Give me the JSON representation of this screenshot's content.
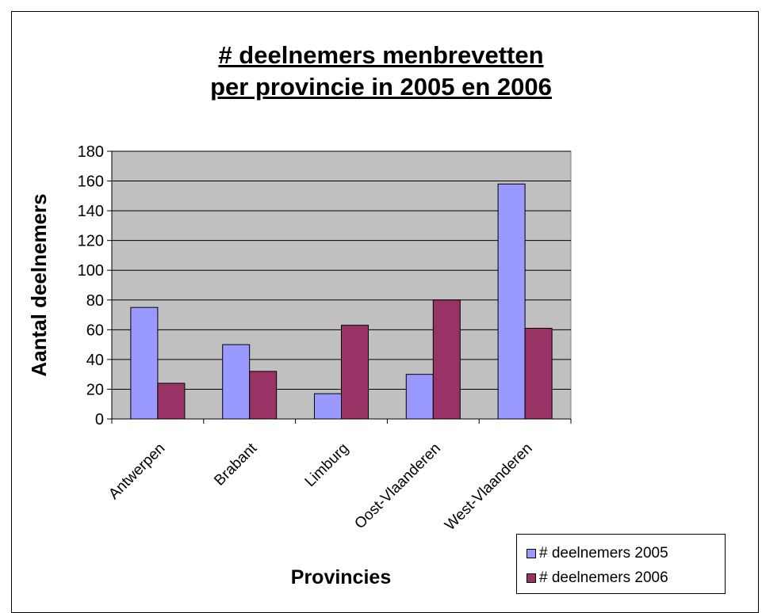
{
  "chart_data": {
    "type": "bar",
    "title_line1": "# deelnemers menbrevetten ",
    "title_line2": "per provincie in 2005 en 2006",
    "xlabel": "Provincies",
    "ylabel": "Aantal deelnemers",
    "categories": [
      "Antwerpen",
      "Brabant",
      "Limburg",
      "Oost-Vlaanderen",
      "West-Vlaanderen"
    ],
    "series": [
      {
        "name": "# deelnemers 2005",
        "values": [
          75,
          50,
          17,
          30,
          158
        ],
        "color": "#9999ff"
      },
      {
        "name": "# deelnemers 2006",
        "values": [
          24,
          32,
          63,
          80,
          61
        ],
        "color": "#993366"
      }
    ],
    "ylim": [
      0,
      180
    ],
    "yticks": [
      0,
      20,
      40,
      60,
      80,
      100,
      120,
      140,
      160,
      180
    ],
    "grid": true,
    "plot_background": "#c0c0c0",
    "legend_position": "bottom-right"
  }
}
